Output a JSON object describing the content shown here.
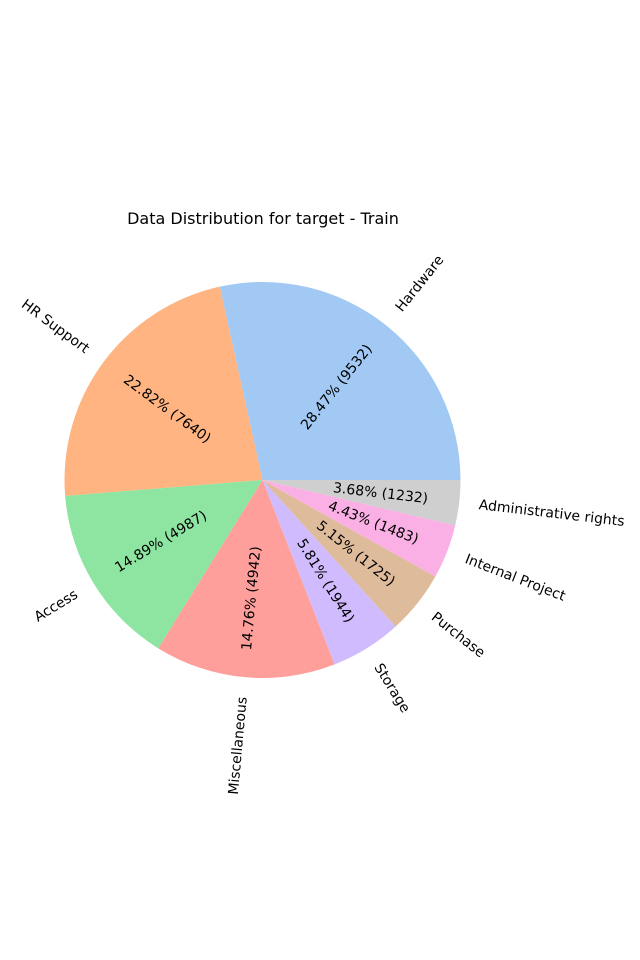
{
  "chart_data": {
    "type": "pie",
    "title": "Data Distribution for target - Train",
    "start_angle_deg": 0,
    "direction": "counterclockwise",
    "legend": "none",
    "slices": [
      {
        "label": "Hardware",
        "value": 9532,
        "percent_label": "28.47% (9532)",
        "color": "#a1c9f4"
      },
      {
        "label": "HR Support",
        "value": 7640,
        "percent_label": "22.82% (7640)",
        "color": "#ffb482"
      },
      {
        "label": "Access",
        "value": 4987,
        "percent_label": "14.89% (4987)",
        "color": "#8de5a1"
      },
      {
        "label": "Miscellaneous",
        "value": 4942,
        "percent_label": "14.76% (4942)",
        "color": "#ff9f9b"
      },
      {
        "label": "Storage",
        "value": 1944,
        "percent_label": "5.81% (1944)",
        "color": "#d0bbff"
      },
      {
        "label": "Purchase",
        "value": 1725,
        "percent_label": "5.15% (1725)",
        "color": "#debb9b"
      },
      {
        "label": "Internal Project",
        "value": 1483,
        "percent_label": "4.43% (1483)",
        "color": "#fab0e4"
      },
      {
        "label": "Administrative rights",
        "value": 1232,
        "percent_label": "3.68% (1232)",
        "color": "#cfcfcf"
      }
    ]
  }
}
